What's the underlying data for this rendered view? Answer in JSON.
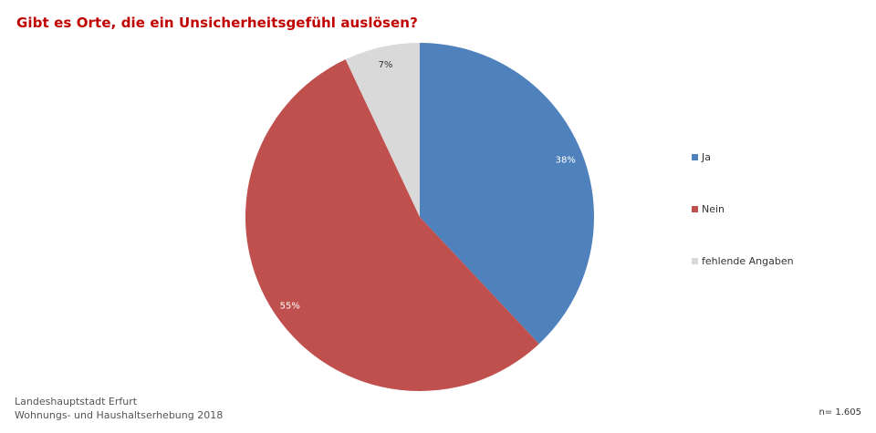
{
  "title": "Gibt es Orte, die ein Unsicherheitsgefühl auslösen?",
  "chart_data": {
    "type": "pie",
    "title": "Gibt es Orte, die ein Unsicherheitsgefühl auslösen?",
    "categories": [
      "Ja",
      "Nein",
      "fehlende Angaben"
    ],
    "values": [
      38,
      55,
      7
    ],
    "labels": [
      "38%",
      "55%",
      "7%"
    ],
    "colors": [
      "#4f81bd",
      "#c0504d",
      "#d9d9d9"
    ],
    "label_colors": [
      "#ffffff",
      "#ffffff",
      "#333333"
    ],
    "start_angle": "12 o'clock",
    "direction": "clockwise",
    "legend_position": "right"
  },
  "footer": {
    "source_line1": "Landeshauptstadt Erfurt",
    "source_line2": "Wohnungs- und Haushaltserhebung 2018",
    "sample_size": "n= 1.605"
  }
}
